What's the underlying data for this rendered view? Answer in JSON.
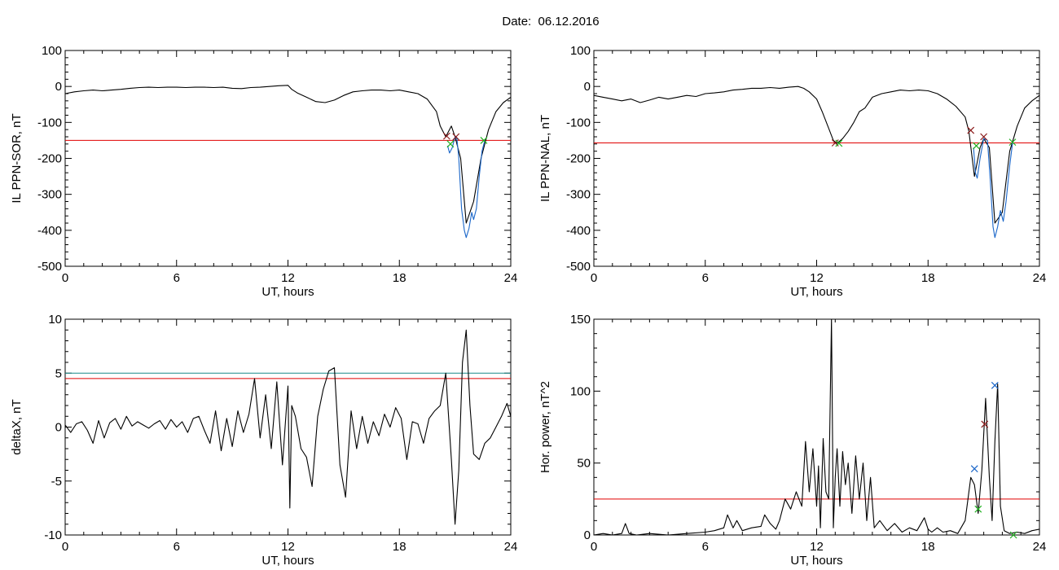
{
  "title": "Date:  06.12.2016",
  "chart_data": [
    {
      "type": "line",
      "ylabel": "IL PPN-SOR, nT",
      "xlabel": "UT, hours",
      "xlim": [
        0,
        24
      ],
      "ylim": [
        -500,
        100
      ],
      "xticks": [
        "0",
        "6",
        "12",
        "18",
        "24"
      ],
      "yticks": [
        "100",
        "0",
        "-100",
        "-200",
        "-300",
        "-400",
        "-500"
      ],
      "threshold": -150,
      "threshold_color": "#e00000",
      "series": [
        {
          "color": "#000000",
          "x": [
            0,
            0.5,
            1,
            1.5,
            2,
            2.5,
            3,
            3.5,
            4,
            4.5,
            5,
            5.5,
            6,
            6.5,
            7,
            7.5,
            8,
            8.5,
            9,
            9.5,
            10,
            10.5,
            11,
            11.5,
            12,
            12.2,
            12.5,
            13,
            13.5,
            14,
            14.5,
            15,
            15.5,
            16,
            16.5,
            17,
            17.5,
            18,
            18.5,
            19,
            19.5,
            20,
            20.2,
            20.5,
            20.8,
            21,
            21.3,
            21.6,
            22,
            22.4,
            22.8,
            23.2,
            23.6,
            24
          ],
          "y": [
            -20,
            -15,
            -12,
            -10,
            -12,
            -10,
            -8,
            -5,
            -3,
            -2,
            -3,
            -2,
            -2,
            -3,
            -2,
            -2,
            -3,
            -2,
            -5,
            -6,
            -3,
            -2,
            0,
            2,
            3,
            -8,
            -18,
            -30,
            -42,
            -45,
            -38,
            -25,
            -15,
            -12,
            -10,
            -10,
            -12,
            -10,
            -15,
            -20,
            -35,
            -70,
            -110,
            -140,
            -110,
            -140,
            -200,
            -380,
            -320,
            -200,
            -120,
            -70,
            -45,
            -30
          ]
        },
        {
          "color": "#1a66c9",
          "x": [
            20.6,
            20.7,
            20.85,
            21.0,
            21.1,
            21.2,
            21.35,
            21.5,
            21.6,
            21.75,
            21.9,
            22.0,
            22.15,
            22.3,
            22.45,
            22.6
          ],
          "y": [
            -165,
            -185,
            -170,
            -140,
            -145,
            -200,
            -340,
            -400,
            -420,
            -395,
            -350,
            -370,
            -340,
            -250,
            -180,
            -150
          ]
        },
        {
          "color": "#000000",
          "marker": "x",
          "points": [
            {
              "x": 20.55,
              "y": -138,
              "color": "#8b1a1a"
            },
            {
              "x": 21.05,
              "y": -140,
              "color": "#8b1a1a"
            },
            {
              "x": 20.75,
              "y": -160,
              "color": "#20b020"
            },
            {
              "x": 22.55,
              "y": -150,
              "color": "#20b020"
            }
          ]
        }
      ]
    },
    {
      "type": "line",
      "ylabel": "IL PPN-NAL, nT",
      "xlabel": "UT, hours",
      "xlim": [
        0,
        24
      ],
      "ylim": [
        -500,
        100
      ],
      "xticks": [
        "0",
        "6",
        "12",
        "18",
        "24"
      ],
      "yticks": [
        "100",
        "0",
        "-100",
        "-200",
        "-300",
        "-400",
        "-500"
      ],
      "threshold": -157,
      "threshold_color": "#e00000",
      "series": [
        {
          "color": "#000000",
          "x": [
            0,
            0.5,
            1,
            1.5,
            2,
            2.5,
            3,
            3.5,
            4,
            4.5,
            5,
            5.5,
            6,
            6.5,
            7,
            7.5,
            8,
            8.5,
            9,
            9.5,
            10,
            10.5,
            11,
            11.3,
            11.6,
            12,
            12.3,
            12.6,
            12.9,
            13.1,
            13.4,
            13.7,
            14.0,
            14.3,
            14.6,
            15,
            15.5,
            16,
            16.5,
            17,
            17.5,
            18,
            18.5,
            19,
            19.5,
            20,
            20.2,
            20.5,
            20.8,
            21,
            21.3,
            21.6,
            22,
            22.4,
            22.8,
            23.2,
            23.6,
            24
          ],
          "y": [
            -25,
            -30,
            -35,
            -40,
            -35,
            -45,
            -38,
            -30,
            -35,
            -30,
            -25,
            -28,
            -20,
            -18,
            -15,
            -10,
            -8,
            -5,
            -5,
            -3,
            -5,
            -2,
            0,
            -5,
            -15,
            -35,
            -70,
            -110,
            -150,
            -158,
            -145,
            -125,
            -100,
            -70,
            -60,
            -30,
            -20,
            -15,
            -10,
            -12,
            -10,
            -12,
            -20,
            -35,
            -55,
            -85,
            -125,
            -250,
            -170,
            -145,
            -170,
            -380,
            -350,
            -180,
            -110,
            -60,
            -40,
            -25
          ]
        },
        {
          "color": "#1a66c9",
          "x": [
            20.45,
            20.55,
            20.65,
            20.8,
            21.0,
            21.2,
            21.35,
            21.5,
            21.6,
            21.75,
            21.9,
            22.05,
            22.2,
            22.4,
            22.55
          ],
          "y": [
            -170,
            -240,
            -255,
            -200,
            -145,
            -150,
            -260,
            -390,
            -420,
            -390,
            -345,
            -375,
            -320,
            -220,
            -157
          ]
        },
        {
          "color": "#000000",
          "marker": "x",
          "points": [
            {
              "x": 13.0,
              "y": -157,
              "color": "#8b1a1a"
            },
            {
              "x": 20.3,
              "y": -122,
              "color": "#8b1a1a"
            },
            {
              "x": 21.0,
              "y": -140,
              "color": "#8b1a1a"
            },
            {
              "x": 13.2,
              "y": -158,
              "color": "#20b020"
            },
            {
              "x": 20.6,
              "y": -165,
              "color": "#20b020"
            },
            {
              "x": 22.55,
              "y": -155,
              "color": "#20b020"
            }
          ]
        }
      ]
    },
    {
      "type": "line",
      "ylabel": "deltaX, nT",
      "xlabel": "UT, hours",
      "xlim": [
        0,
        24
      ],
      "ylim": [
        -10,
        10
      ],
      "xticks": [
        "0",
        "6",
        "12",
        "18",
        "24"
      ],
      "yticks": [
        "10",
        "5",
        "0",
        "-5",
        "-10"
      ],
      "threshold": 4.5,
      "threshold_color": "#e00000",
      "threshold2": 5.0,
      "threshold2_color": "#1a8a8a",
      "series": [
        {
          "color": "#000000",
          "x": [
            0,
            0.3,
            0.6,
            0.9,
            1.2,
            1.5,
            1.8,
            2.1,
            2.4,
            2.7,
            3.0,
            3.3,
            3.6,
            3.9,
            4.2,
            4.5,
            4.8,
            5.1,
            5.4,
            5.7,
            6.0,
            6.3,
            6.6,
            6.9,
            7.2,
            7.5,
            7.8,
            8.1,
            8.4,
            8.7,
            9.0,
            9.3,
            9.6,
            9.9,
            10.2,
            10.5,
            10.8,
            11.1,
            11.4,
            11.7,
            12.0,
            12.1,
            12.2,
            12.4,
            12.7,
            13.0,
            13.3,
            13.6,
            13.9,
            14.2,
            14.5,
            14.8,
            15.1,
            15.4,
            15.7,
            16.0,
            16.3,
            16.6,
            16.9,
            17.2,
            17.5,
            17.8,
            18.1,
            18.4,
            18.7,
            19.0,
            19.3,
            19.6,
            19.9,
            20.2,
            20.5,
            20.8,
            21.0,
            21.2,
            21.4,
            21.6,
            21.8,
            22.0,
            22.3,
            22.6,
            22.9,
            23.2,
            23.5,
            23.8,
            24.0
          ],
          "y": [
            0.2,
            -0.5,
            0.3,
            0.5,
            -0.3,
            -1.5,
            0.6,
            -1.0,
            0.4,
            0.8,
            -0.2,
            1.0,
            0.1,
            0.5,
            0.2,
            -0.1,
            0.3,
            0.6,
            -0.2,
            0.7,
            0.0,
            0.5,
            -0.5,
            0.8,
            1.0,
            -0.3,
            -1.5,
            1.5,
            -2.2,
            0.8,
            -1.8,
            1.5,
            -0.5,
            1.2,
            4.5,
            -1.0,
            3.0,
            -2.0,
            4.2,
            -3.5,
            3.8,
            -7.5,
            2.0,
            1.0,
            -2.0,
            -2.8,
            -5.5,
            1.0,
            3.5,
            5.2,
            5.5,
            -3.5,
            -6.5,
            1.5,
            -2.0,
            1.0,
            -1.5,
            0.5,
            -0.8,
            1.2,
            0.0,
            1.8,
            0.8,
            -3.0,
            0.5,
            0.3,
            -1.5,
            0.8,
            1.5,
            2.0,
            5.0,
            -3.0,
            -9.0,
            -4.0,
            6.0,
            9.0,
            2.0,
            -2.5,
            -3.0,
            -1.5,
            -1.0,
            0.0,
            1.0,
            2.2,
            1.0
          ]
        }
      ]
    },
    {
      "type": "line",
      "ylabel": "Hor. power, nT^2",
      "xlabel": "UT, hours",
      "xlim": [
        0,
        24
      ],
      "ylim": [
        0,
        150
      ],
      "xticks": [
        "0",
        "6",
        "12",
        "18",
        "24"
      ],
      "yticks": [
        "150",
        "100",
        "50",
        "0"
      ],
      "threshold": 25,
      "threshold_color": "#e00000",
      "series": [
        {
          "color": "#000000",
          "x": [
            0,
            0.5,
            1.0,
            1.5,
            1.7,
            1.9,
            2.3,
            3,
            4,
            5,
            6,
            6.5,
            7.0,
            7.2,
            7.5,
            7.7,
            8.0,
            8.5,
            9.0,
            9.2,
            9.5,
            9.8,
            10.0,
            10.3,
            10.6,
            10.9,
            11.2,
            11.4,
            11.6,
            11.8,
            12.0,
            12.1,
            12.2,
            12.35,
            12.5,
            12.65,
            12.8,
            12.9,
            13.0,
            13.1,
            13.25,
            13.4,
            13.55,
            13.7,
            13.9,
            14.1,
            14.3,
            14.5,
            14.7,
            14.9,
            15.1,
            15.4,
            15.8,
            16.2,
            16.6,
            17.0,
            17.4,
            17.8,
            18.0,
            18.2,
            18.5,
            18.8,
            19.2,
            19.6,
            20.0,
            20.3,
            20.5,
            20.7,
            20.9,
            21.1,
            21.3,
            21.45,
            21.6,
            21.75,
            21.9,
            22.1,
            22.4,
            22.8,
            23.2,
            23.6,
            24.0
          ],
          "y": [
            0,
            1,
            0,
            1,
            8,
            1,
            0,
            1,
            0,
            1,
            2,
            3,
            5,
            14,
            5,
            10,
            3,
            5,
            6,
            14,
            8,
            4,
            10,
            25,
            18,
            30,
            20,
            65,
            30,
            60,
            20,
            48,
            5,
            67,
            30,
            25,
            150,
            5,
            40,
            60,
            20,
            58,
            35,
            50,
            15,
            55,
            25,
            50,
            10,
            40,
            5,
            10,
            3,
            8,
            2,
            5,
            3,
            12,
            4,
            2,
            5,
            2,
            3,
            1,
            10,
            40,
            35,
            15,
            45,
            95,
            40,
            10,
            65,
            105,
            20,
            3,
            1,
            2,
            1,
            3,
            4
          ]
        },
        {
          "color": "#000000",
          "marker": "x",
          "points": [
            {
              "x": 20.5,
              "y": 46,
              "color": "#1a66c9"
            },
            {
              "x": 21.6,
              "y": 104,
              "color": "#1a66c9"
            },
            {
              "x": 21.05,
              "y": 77,
              "color": "#8b1a1a"
            },
            {
              "x": 20.7,
              "y": 18,
              "color": "#20b020"
            },
            {
              "x": 22.6,
              "y": 0,
              "color": "#20b020"
            }
          ]
        }
      ]
    }
  ]
}
